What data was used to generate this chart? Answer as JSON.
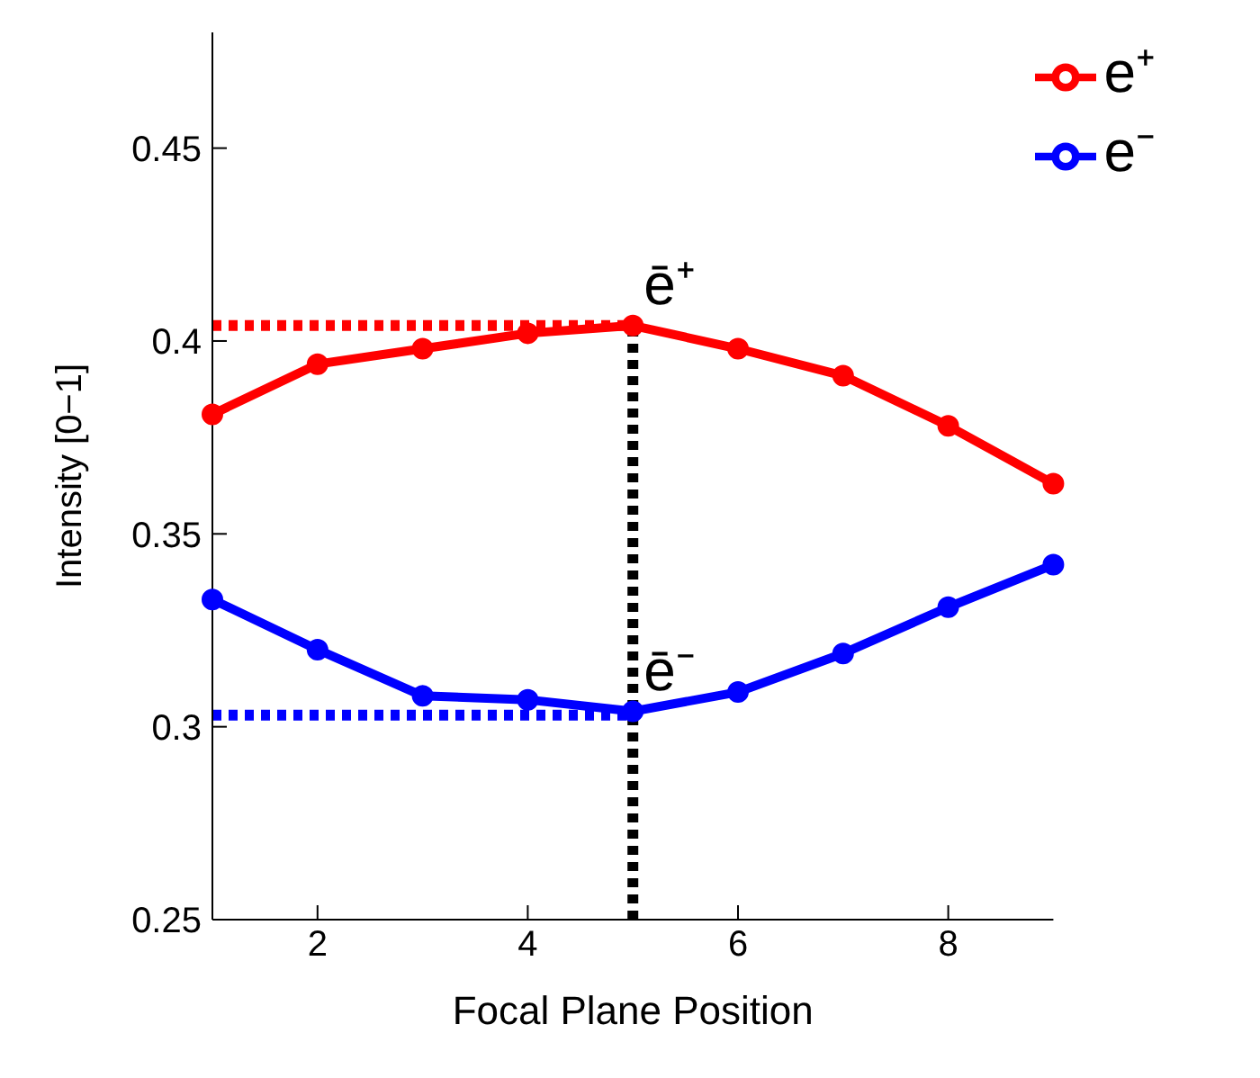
{
  "chart_data": {
    "type": "line",
    "xlabel": "Focal Plane Position",
    "ylabel": "Intensity [0−1]",
    "x": [
      1,
      2,
      3,
      4,
      5,
      6,
      7,
      8,
      9
    ],
    "xlim": [
      1,
      9
    ],
    "xticks": [
      2,
      4,
      6,
      8
    ],
    "ylim": [
      0.25,
      0.48
    ],
    "yticks": [
      0.25,
      0.3,
      0.35,
      0.4,
      0.45
    ],
    "grid": false,
    "legend": "top right",
    "marker": "circle",
    "line_style": "solid",
    "series": [
      {
        "name": "e⁺",
        "color": "#ff0000",
        "values": [
          0.381,
          0.394,
          0.398,
          0.402,
          0.404,
          0.398,
          0.391,
          0.378,
          0.363
        ]
      },
      {
        "name": "e⁻",
        "color": "#0000ff",
        "values": [
          0.333,
          0.32,
          0.308,
          0.307,
          0.304,
          0.309,
          0.319,
          0.331,
          0.342
        ]
      },
      {
        "type": "line",
        "color": "#ff0000",
        "values": [
          0.404,
          0.404,
          0.404,
          0.404,
          0.404,
          null,
          null,
          null,
          null
        ],
        "line_style": "dotted",
        "marker": "none"
      },
      {
        "type": "line",
        "color": "#0000ff",
        "values": [
          0.303,
          0.303,
          0.303,
          0.303,
          0.303,
          null,
          null,
          null,
          null
        ],
        "line_style": "dotted",
        "marker": "none"
      },
      {
        "type": "line",
        "color": "#000000",
        "x": [
          5,
          5
        ],
        "values": [
          0.25,
          0.404
        ],
        "line_style": "dotted",
        "marker": "none"
      }
    ],
    "annotations": [
      {
        "text": "ē⁺",
        "x": 5,
        "y": 0.404
      },
      {
        "text": "ē⁻",
        "x": 5,
        "y": 0.304
      }
    ]
  }
}
